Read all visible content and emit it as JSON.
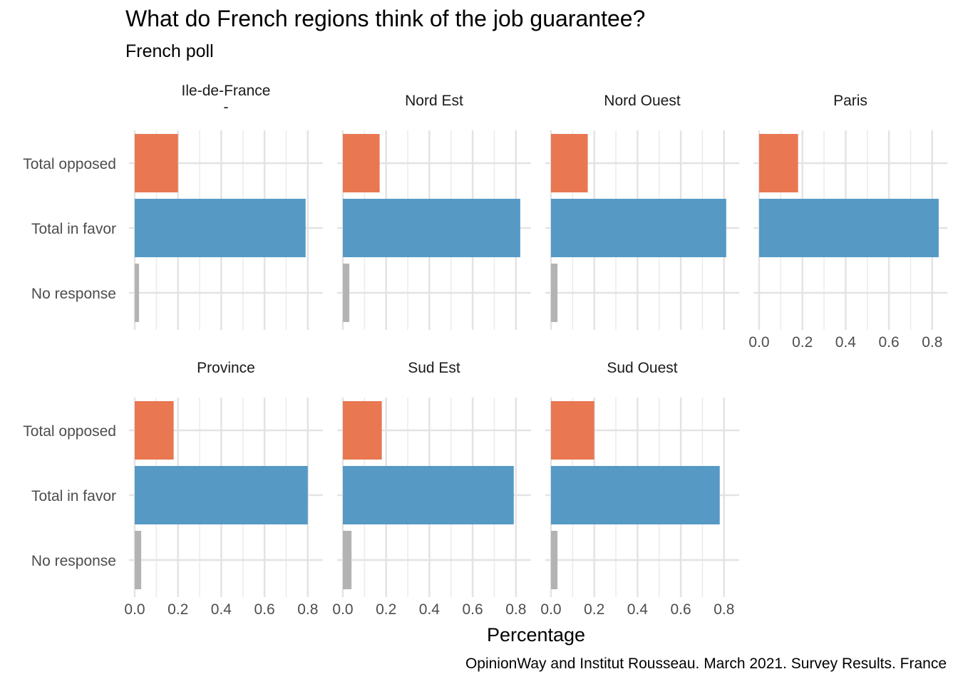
{
  "chart_data": {
    "type": "bar",
    "orientation": "horizontal",
    "title": "What do French regions think of the job guarantee?",
    "subtitle": "French poll",
    "caption": "OpinionWay and Institut Rousseau. March 2021. Survey Results. France",
    "xlabel": "Percentage",
    "ylabel": "",
    "xlim": [
      0,
      0.85
    ],
    "x_ticks": [
      "0.0",
      "0.2",
      "0.4",
      "0.6",
      "0.8"
    ],
    "categories": [
      "Total opposed",
      "Total in favor",
      "No response"
    ],
    "colors": {
      "Total opposed": "#E87752",
      "Total in favor": "#5699C5",
      "No response": "#B3B3B3"
    },
    "grid": true,
    "legend": "none",
    "panels": [
      {
        "name": "Ile-de-France\n-",
        "values": [
          0.2,
          0.79,
          0.02
        ]
      },
      {
        "name": "Nord Est",
        "values": [
          0.17,
          0.82,
          0.03
        ]
      },
      {
        "name": "Nord Ouest",
        "values": [
          0.17,
          0.81,
          0.03
        ]
      },
      {
        "name": "Paris",
        "values": [
          0.18,
          0.83,
          0.0
        ]
      },
      {
        "name": "Province",
        "values": [
          0.18,
          0.8,
          0.03
        ]
      },
      {
        "name": "Sud Est",
        "values": [
          0.18,
          0.79,
          0.04
        ]
      },
      {
        "name": "Sud Ouest",
        "values": [
          0.2,
          0.78,
          0.03
        ]
      }
    ]
  }
}
